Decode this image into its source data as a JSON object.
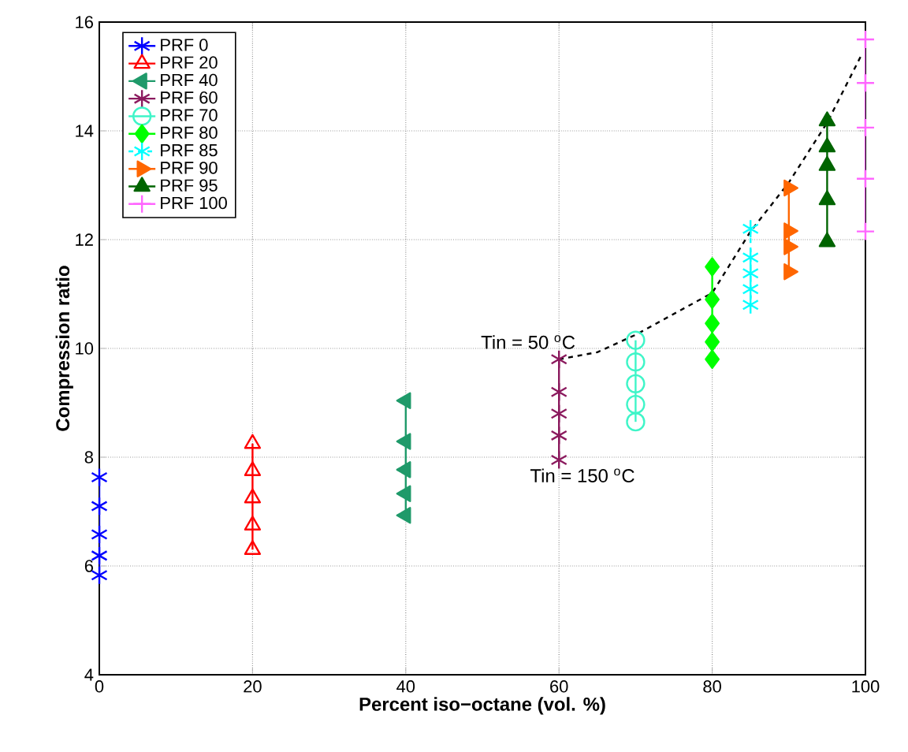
{
  "chart_data": {
    "type": "line",
    "xlabel": "Percent iso−octane (vol. %)",
    "ylabel": "Compression ratio",
    "xlim": [
      0,
      100
    ],
    "ylim": [
      4,
      16
    ],
    "xticks": [
      0,
      20,
      40,
      60,
      80,
      100
    ],
    "yticks": [
      4,
      6,
      8,
      10,
      12,
      14,
      16
    ],
    "grid": true,
    "legend": "top left",
    "series": [
      {
        "name": "PRF 0",
        "color": "#0000ff",
        "marker": "cross",
        "x": [
          0,
          0,
          0,
          0,
          0
        ],
        "values": [
          7.63,
          7.1,
          6.58,
          6.19,
          5.83
        ]
      },
      {
        "name": "PRF 20",
        "color": "#ff0000",
        "marker": "triangle",
        "x": [
          20,
          20,
          20,
          20,
          20
        ],
        "values": [
          8.25,
          7.75,
          7.25,
          6.75,
          6.3
        ]
      },
      {
        "name": "PRF 40",
        "color": "#1f9a6a",
        "marker": "triangle-left",
        "x": [
          40,
          40,
          40,
          40,
          40
        ],
        "values": [
          9.04,
          8.29,
          7.77,
          7.33,
          6.93
        ]
      },
      {
        "name": "PRF 60",
        "color": "#8b1a5e",
        "marker": "cross",
        "x": [
          60,
          60,
          60,
          60,
          60
        ],
        "values": [
          9.8,
          9.2,
          8.8,
          8.4,
          7.95
        ]
      },
      {
        "name": "PRF 70",
        "color": "#3ff5c8",
        "marker": "circle",
        "x": [
          70,
          70,
          70,
          70,
          70
        ],
        "values": [
          10.15,
          9.75,
          9.35,
          8.97,
          8.65
        ]
      },
      {
        "name": "PRF 80",
        "color": "#00ff00",
        "marker": "diamond",
        "x": [
          80,
          80,
          80,
          80,
          80
        ],
        "values": [
          11.5,
          10.9,
          10.46,
          10.12,
          9.8
        ]
      },
      {
        "name": "PRF 85",
        "color": "#00ffff",
        "marker": "cross",
        "line_style": "dashed",
        "x": [
          85,
          85,
          85,
          85,
          85
        ],
        "values": [
          12.2,
          11.67,
          11.38,
          11.09,
          10.8
        ]
      },
      {
        "name": "PRF 90",
        "color": "#ff6600",
        "marker": "triangle-right",
        "x": [
          90,
          90,
          90,
          90
        ],
        "values": [
          12.95,
          12.16,
          11.87,
          11.41
        ]
      },
      {
        "name": "PRF 95",
        "color": "#006400",
        "marker": "triangle-filled",
        "x": [
          95,
          95,
          95,
          95,
          95
        ],
        "values": [
          14.18,
          13.7,
          13.36,
          12.73,
          11.96
        ]
      },
      {
        "name": "PRF 100",
        "color": "#ff66ff",
        "marker": "plus",
        "x": [
          100,
          100,
          100,
          100,
          100
        ],
        "values": [
          15.68,
          14.88,
          14.06,
          13.12,
          12.15
        ]
      },
      {
        "color": "#000000",
        "marker": "none",
        "line_style": "dashed",
        "x": [
          60,
          65,
          70,
          80,
          85,
          90,
          95,
          99.5
        ],
        "values": [
          9.8,
          9.93,
          10.25,
          11.02,
          12.15,
          13.05,
          14.15,
          15.4
        ]
      }
    ],
    "annotations": [
      {
        "text": "Tin = 50 $^{o}$C",
        "x": 60,
        "y": 9.8
      },
      {
        "text": "Tin = 150 $^{o}$C",
        "x": 60,
        "y": 7.95
      }
    ]
  }
}
